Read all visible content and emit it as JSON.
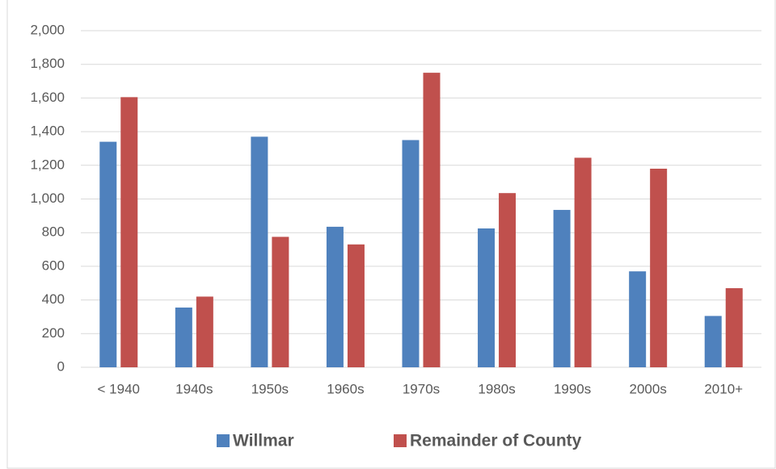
{
  "chart_data": {
    "type": "bar",
    "categories": [
      "< 1940",
      "1940s",
      "1950s",
      "1960s",
      "1970s",
      "1980s",
      "1990s",
      "2000s",
      "2010+"
    ],
    "series": [
      {
        "name": "Willmar",
        "color": "#4f81bd",
        "values": [
          1340,
          355,
          1370,
          835,
          1350,
          825,
          935,
          570,
          305
        ]
      },
      {
        "name": "Remainder of County",
        "color": "#c0504d",
        "values": [
          1605,
          420,
          775,
          730,
          1750,
          1035,
          1245,
          1180,
          470
        ]
      }
    ],
    "ylim": [
      0,
      2000
    ],
    "yticks": [
      0,
      200,
      400,
      600,
      800,
      {
        "value": 1000,
        "label": "1,000"
      },
      {
        "value": 1200,
        "label": "1,200"
      },
      {
        "value": 1400,
        "label": "1,400"
      },
      {
        "value": 1600,
        "label": "1,600"
      },
      {
        "value": 1800,
        "label": "1,800"
      },
      {
        "value": 2000,
        "label": "2,000"
      }
    ],
    "grid": true,
    "legend": "bottom"
  }
}
